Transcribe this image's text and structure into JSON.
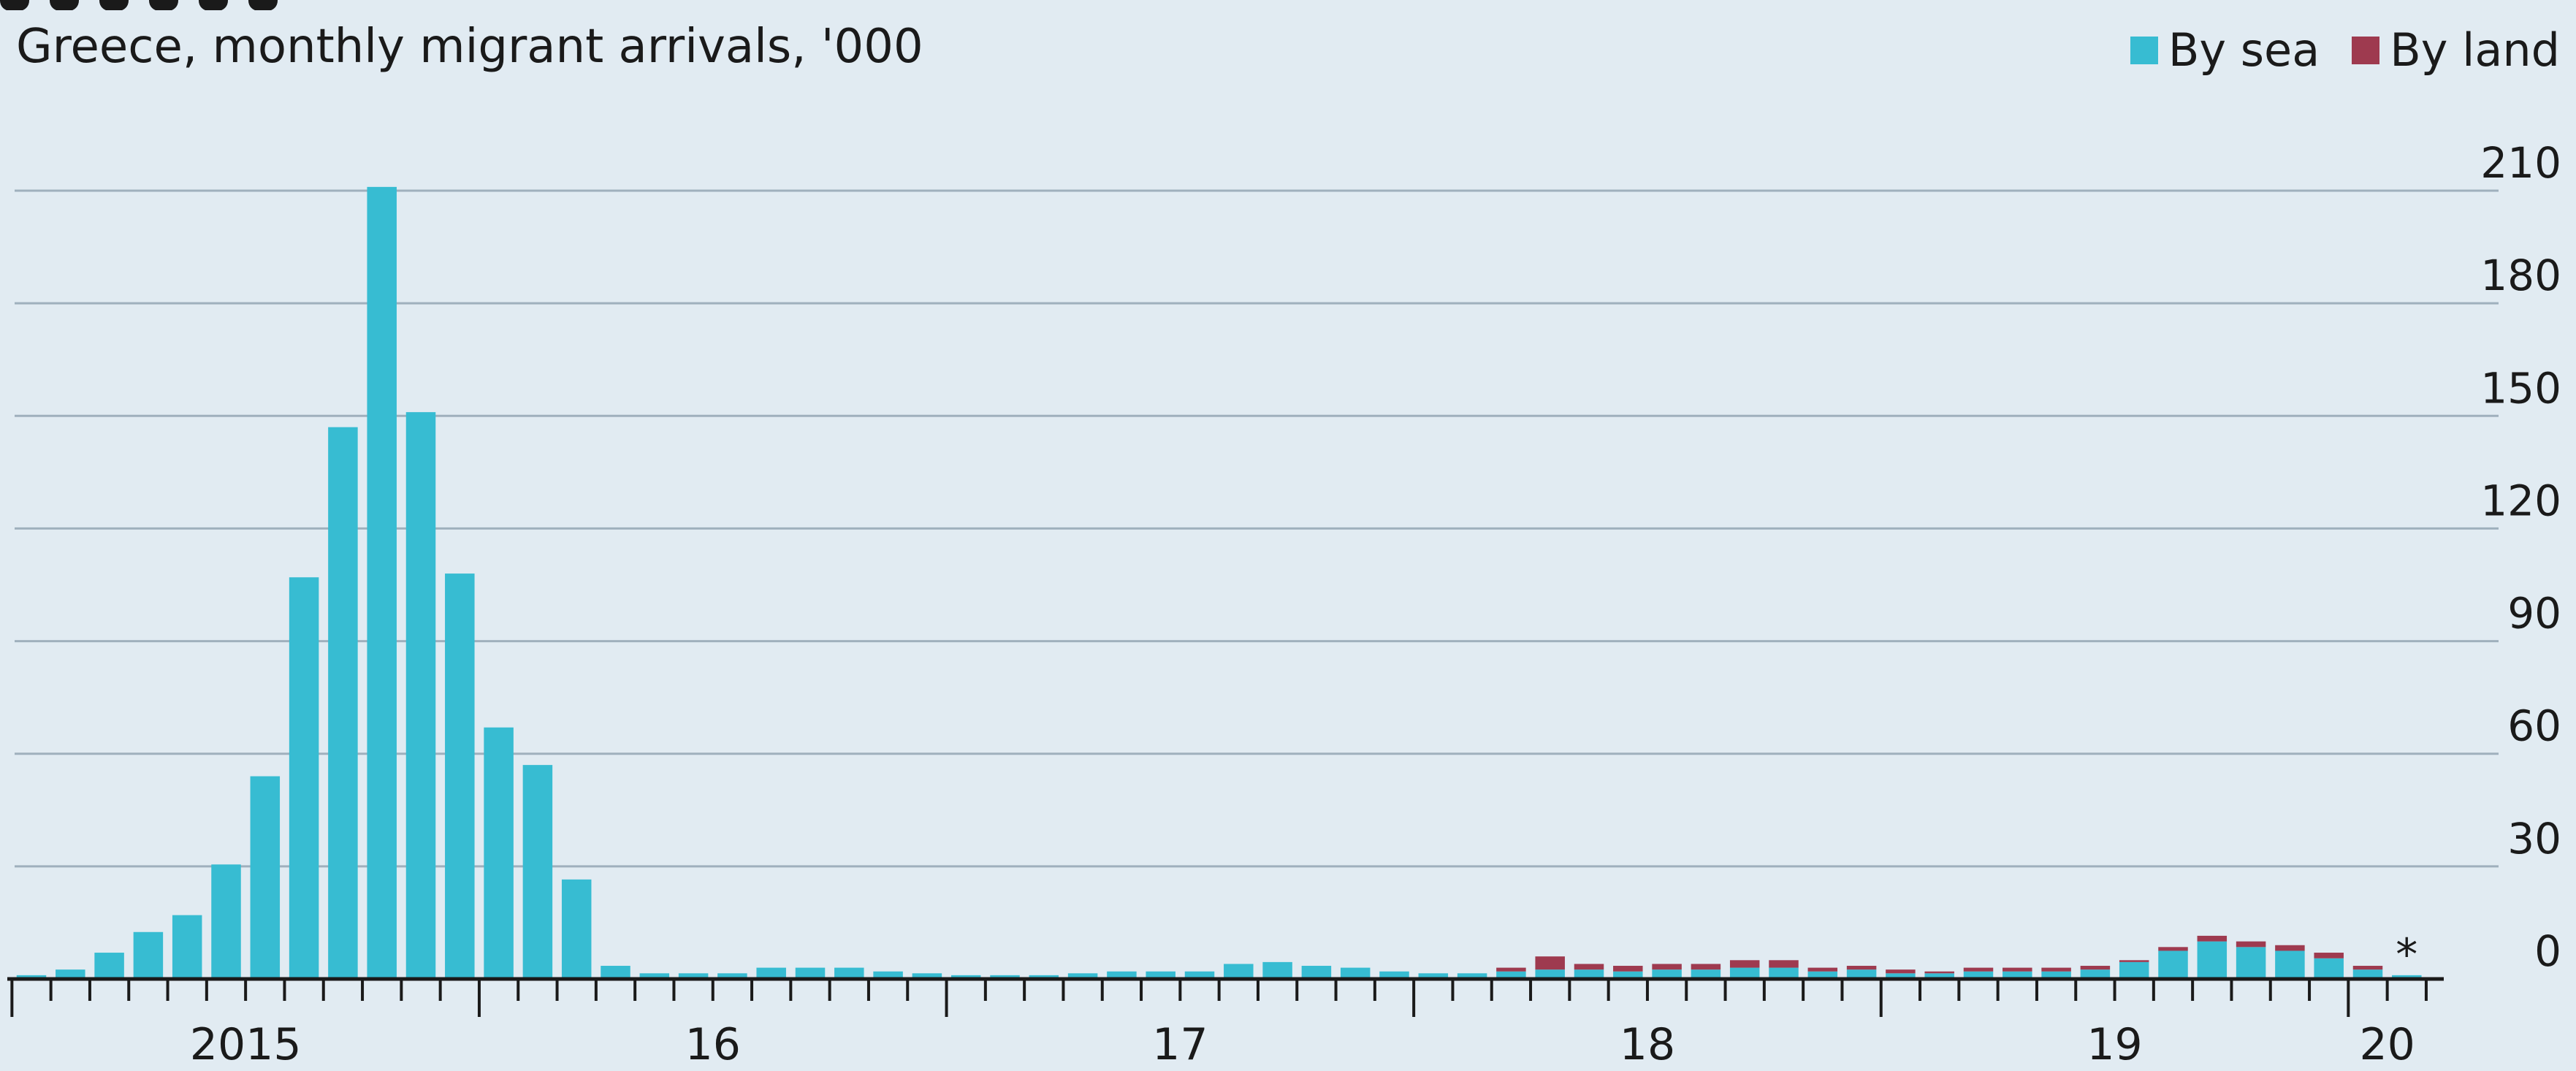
{
  "chart_data": {
    "type": "bar",
    "stacked": true,
    "title": "",
    "subtitle": "Greece, monthly migrant arrivals, '000",
    "xlabel": "",
    "ylabel": "",
    "ylim": [
      0,
      210
    ],
    "yticks": [
      0,
      30,
      60,
      90,
      120,
      150,
      180,
      210
    ],
    "y_axis_side": "right",
    "grid": true,
    "legend_position": "top-right",
    "x_tick_labels": [
      "2015",
      "16",
      "17",
      "18",
      "19",
      "20"
    ],
    "annotation": "*",
    "categories": [
      "2015-01",
      "2015-02",
      "2015-03",
      "2015-04",
      "2015-05",
      "2015-06",
      "2015-07",
      "2015-08",
      "2015-09",
      "2015-10",
      "2015-11",
      "2015-12",
      "2016-01",
      "2016-02",
      "2016-03",
      "2016-04",
      "2016-05",
      "2016-06",
      "2016-07",
      "2016-08",
      "2016-09",
      "2016-10",
      "2016-11",
      "2016-12",
      "2017-01",
      "2017-02",
      "2017-03",
      "2017-04",
      "2017-05",
      "2017-06",
      "2017-07",
      "2017-08",
      "2017-09",
      "2017-10",
      "2017-11",
      "2017-12",
      "2018-01",
      "2018-02",
      "2018-03",
      "2018-04",
      "2018-05",
      "2018-06",
      "2018-07",
      "2018-08",
      "2018-09",
      "2018-10",
      "2018-11",
      "2018-12",
      "2019-01",
      "2019-02",
      "2019-03",
      "2019-04",
      "2019-05",
      "2019-06",
      "2019-07",
      "2019-08",
      "2019-09",
      "2019-10",
      "2019-11",
      "2019-12",
      "2020-01",
      "2020-02"
    ],
    "series": [
      {
        "name": "By sea",
        "color": "#37bcd2",
        "values": [
          1.0,
          2.5,
          7.0,
          12.5,
          17.0,
          30.5,
          54.0,
          107.0,
          147.0,
          211.0,
          151.0,
          108.0,
          67.0,
          57.0,
          26.5,
          3.5,
          1.5,
          1.5,
          1.5,
          3.0,
          3.0,
          3.0,
          2.0,
          1.5,
          1.0,
          1.0,
          1.0,
          1.5,
          2.0,
          2.0,
          2.0,
          4.0,
          4.5,
          3.5,
          3.0,
          2.0,
          1.5,
          1.5,
          2.0,
          2.5,
          2.5,
          2.0,
          2.5,
          2.5,
          3.0,
          3.0,
          2.0,
          2.5,
          1.5,
          1.5,
          2.0,
          2.0,
          2.0,
          2.5,
          4.5,
          7.5,
          10.0,
          8.5,
          7.5,
          5.5,
          2.5,
          1.0
        ]
      },
      {
        "name": "By land",
        "color": "#9e3a4f",
        "values": [
          0,
          0,
          0,
          0,
          0,
          0,
          0,
          0,
          0,
          0,
          0,
          0,
          0,
          0,
          0,
          0,
          0,
          0,
          0,
          0,
          0,
          0,
          0,
          0,
          0,
          0,
          0,
          0,
          0,
          0,
          0,
          0,
          0,
          0,
          0,
          0,
          0,
          0,
          1.0,
          3.5,
          1.5,
          1.5,
          1.5,
          1.5,
          2.0,
          2.0,
          1.0,
          1.0,
          1.0,
          0.5,
          1.0,
          1.0,
          1.0,
          1.0,
          0.5,
          1.0,
          1.5,
          1.5,
          1.5,
          1.5,
          1.0,
          0
        ]
      }
    ]
  }
}
